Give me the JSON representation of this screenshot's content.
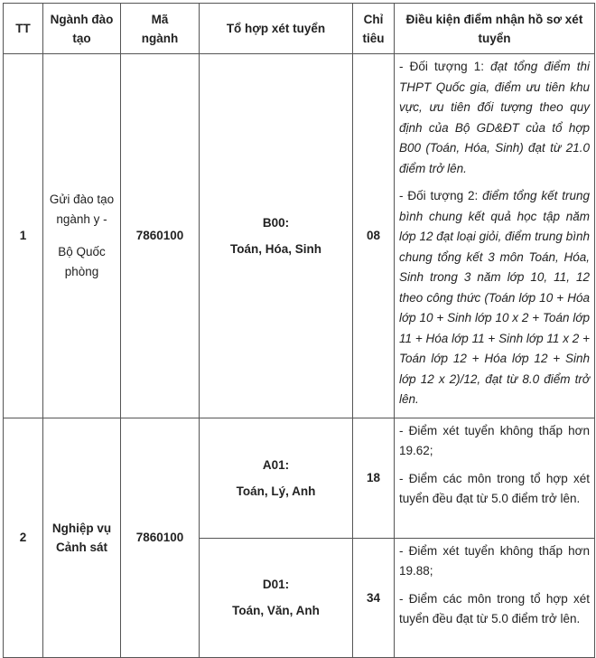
{
  "table": {
    "headers": [
      "TT",
      "Ngành đào tạo",
      "Mã ngành",
      "Tổ hợp xét tuyển",
      "Chỉ tiêu",
      "Điều kiện điểm nhận hồ sơ xét tuyển"
    ],
    "rows": [
      {
        "tt": "1",
        "nganh_line1": "Gửi đào tạo ngành y -",
        "nganh_line2": "Bộ Quốc phòng",
        "ma_nganh": "7860100",
        "groups": [
          {
            "code": "B00:",
            "subjects": "Toán, Hóa, Sinh",
            "chi_tieu": "08",
            "conditions": [
              {
                "lead": "- Đối tượng 1:",
                "text": " đạt tổng điểm thi THPT Quốc gia, điểm ưu tiên khu vực, ưu tiên đối tượng theo quy định của Bộ GD&ĐT của tổ hợp B00 (Toán, Hóa, Sinh) đạt từ 21.0 điểm trở lên."
              },
              {
                "lead": "- Đối tượng 2:",
                "text": " điểm tổng kết trung bình chung kết quả học tập năm lớp 12 đạt loại giỏi, điểm trung bình chung tổng kết 3 môn Toán, Hóa, Sinh trong 3 năm lớp 10, 11, 12 theo công thức (Toán lớp 10 + Hóa lớp 10 + Sinh lớp 10 x 2 + Toán lớp 11 + Hóa lớp 11 + Sinh lớp 11 x 2 + Toán lớp 12 + Hóa lớp 12 + Sinh lớp 12 x 2)/12, đạt từ 8.0 điểm trở lên."
              }
            ]
          }
        ]
      },
      {
        "tt": "2",
        "nganh_line1": "Nghiệp vụ",
        "nganh_line2": "Cảnh sát",
        "ma_nganh": "7860100",
        "groups": [
          {
            "code": "A01:",
            "subjects": "Toán, Lý, Anh",
            "chi_tieu": "18",
            "conditions": [
              {
                "text": "- Điểm xét tuyển không thấp hơn 19.62;"
              },
              {
                "text": "- Điểm các môn trong tổ hợp xét tuyển đều đạt từ 5.0 điểm trở lên."
              }
            ]
          },
          {
            "code": "D01:",
            "subjects": "Toán, Văn, Anh",
            "chi_tieu": "34",
            "conditions": [
              {
                "text": "- Điểm xét tuyển không thấp hơn 19.88;"
              },
              {
                "text": "- Điểm các môn trong tổ hợp xét tuyển đều đạt từ 5.0 điểm trở lên."
              }
            ]
          }
        ]
      }
    ]
  }
}
